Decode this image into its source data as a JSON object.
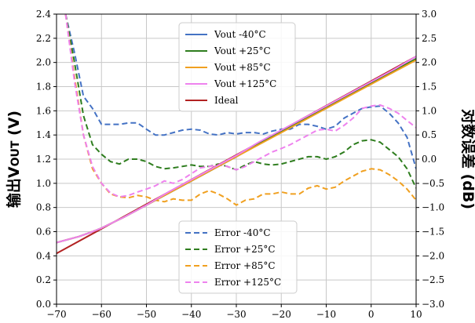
{
  "chart_data": {
    "type": "line",
    "title": "",
    "xlabel": "",
    "ylabel": "输出VOUT (V)",
    "ylabel_parts": {
      "prefix": "输出V",
      "subscript": "OUT",
      "suffix": " (V)"
    },
    "y2label": "对数误差 (dB)",
    "xlim": [
      -70,
      10
    ],
    "ylim": [
      0,
      2.4
    ],
    "y2lim": [
      -3.0,
      3.0
    ],
    "xticks": [
      -70,
      -60,
      -50,
      -40,
      -30,
      -20,
      -10,
      0,
      10
    ],
    "xtick_labels": [
      "−70",
      "−60",
      "−50",
      "−40",
      "−30",
      "−20",
      "−10",
      "0",
      "10"
    ],
    "yticks": [
      0.0,
      0.2,
      0.4,
      0.6,
      0.8,
      1.0,
      1.2,
      1.4,
      1.6,
      1.8,
      2.0,
      2.2,
      2.4
    ],
    "ytick_labels": [
      "0.0",
      "0.2",
      "0.4",
      "0.6",
      "0.8",
      "1.0",
      "1.2",
      "1.4",
      "1.6",
      "1.8",
      "2.0",
      "2.2",
      "2.4"
    ],
    "y2ticks": [
      -3.0,
      -2.5,
      -2.0,
      -1.5,
      -1.0,
      -0.5,
      0.0,
      0.5,
      1.0,
      1.5,
      2.0,
      2.5,
      3.0
    ],
    "y2tick_labels": [
      "−3.0",
      "−2.5",
      "−2.0",
      "−1.5",
      "−1.0",
      "−0.5",
      "0.0",
      "0.5",
      "1.0",
      "1.5",
      "2.0",
      "2.5",
      "3.0"
    ],
    "grid": true,
    "legends": [
      {
        "placement": "upper-center",
        "entries": [
          "Vout  -40°C",
          "Vout +25°C",
          "Vout +85°C",
          "Vout +125°C",
          "Ideal"
        ]
      },
      {
        "placement": "lower-center",
        "entries": [
          "Error  -40°C",
          "Error +25°C",
          "Error +85°C",
          "Error +125°C"
        ]
      }
    ],
    "series": [
      {
        "name": "Vout  -40°C",
        "axis": "left",
        "style": "solid",
        "color": "#4472C4",
        "x": [
          -70,
          -65,
          -62,
          -60,
          -55,
          -50,
          -45,
          -40,
          -35,
          -30,
          -25,
          -20,
          -15,
          -10,
          -5,
          0,
          5,
          10
        ],
        "y": [
          0.51,
          0.56,
          0.6,
          0.63,
          0.72,
          0.82,
          0.92,
          1.02,
          1.12,
          1.22,
          1.33,
          1.43,
          1.53,
          1.63,
          1.73,
          1.83,
          1.93,
          2.03
        ]
      },
      {
        "name": "Vout +25°C",
        "axis": "left",
        "style": "solid",
        "color": "#2E7D1E",
        "x": [
          -70,
          -65,
          -62,
          -60,
          -55,
          -50,
          -45,
          -40,
          -35,
          -30,
          -25,
          -20,
          -15,
          -10,
          -5,
          0,
          5,
          10
        ],
        "y": [
          0.51,
          0.56,
          0.6,
          0.63,
          0.72,
          0.82,
          0.92,
          1.02,
          1.12,
          1.22,
          1.33,
          1.43,
          1.53,
          1.63,
          1.73,
          1.83,
          1.93,
          2.03
        ]
      },
      {
        "name": "Vout +85°C",
        "axis": "left",
        "style": "solid",
        "color": "#F0A020",
        "x": [
          -70,
          -65,
          -62,
          -60,
          -55,
          -50,
          -45,
          -40,
          -35,
          -30,
          -25,
          -20,
          -15,
          -10,
          -5,
          0,
          5,
          10
        ],
        "y": [
          0.51,
          0.56,
          0.6,
          0.63,
          0.72,
          0.82,
          0.92,
          1.02,
          1.12,
          1.22,
          1.32,
          1.42,
          1.52,
          1.62,
          1.72,
          1.82,
          1.92,
          2.02
        ]
      },
      {
        "name": "Vout +125°C",
        "axis": "left",
        "style": "solid",
        "color": "#EE82EE",
        "x": [
          -70,
          -65,
          -62,
          -60,
          -55,
          -50,
          -45,
          -40,
          -35,
          -30,
          -25,
          -20,
          -15,
          -10,
          -5,
          0,
          5,
          10
        ],
        "y": [
          0.51,
          0.56,
          0.6,
          0.63,
          0.72,
          0.82,
          0.93,
          1.03,
          1.13,
          1.23,
          1.34,
          1.44,
          1.54,
          1.64,
          1.74,
          1.84,
          1.94,
          2.05
        ]
      },
      {
        "name": "Ideal",
        "axis": "left",
        "style": "solid",
        "color": "#B22222",
        "x": [
          -70,
          10
        ],
        "y": [
          0.42,
          2.05
        ]
      },
      {
        "name": "Error  -40°C",
        "axis": "right",
        "style": "dashed",
        "color": "#4472C4",
        "x": [
          -68,
          -66,
          -64,
          -62,
          -60,
          -58,
          -56,
          -54,
          -52,
          -50,
          -48,
          -46,
          -44,
          -42,
          -40,
          -38,
          -36,
          -34,
          -32,
          -30,
          -28,
          -26,
          -24,
          -22,
          -20,
          -18,
          -16,
          -14,
          -12,
          -10,
          -8,
          -6,
          -4,
          -2,
          0,
          2,
          4,
          6,
          8,
          10
        ],
        "y": [
          3.0,
          2.2,
          1.3,
          1.05,
          0.72,
          0.72,
          0.72,
          0.75,
          0.75,
          0.62,
          0.5,
          0.5,
          0.55,
          0.6,
          0.62,
          0.6,
          0.52,
          0.5,
          0.55,
          0.52,
          0.55,
          0.55,
          0.52,
          0.58,
          0.62,
          0.62,
          0.72,
          0.72,
          0.68,
          0.62,
          0.68,
          0.85,
          0.95,
          1.05,
          1.08,
          1.1,
          0.95,
          0.75,
          0.45,
          -0.2
        ]
      },
      {
        "name": "Error +25°C",
        "axis": "right",
        "style": "dashed",
        "color": "#2E7D1E",
        "x": [
          -68,
          -66,
          -64,
          -62,
          -60,
          -58,
          -56,
          -54,
          -52,
          -50,
          -48,
          -46,
          -44,
          -42,
          -40,
          -38,
          -36,
          -34,
          -32,
          -30,
          -28,
          -26,
          -24,
          -22,
          -20,
          -18,
          -16,
          -14,
          -12,
          -10,
          -8,
          -6,
          -4,
          -2,
          0,
          2,
          4,
          6,
          8,
          10
        ],
        "y": [
          3.0,
          2.0,
          0.9,
          0.3,
          0.1,
          -0.05,
          -0.1,
          0.0,
          0.0,
          -0.05,
          -0.15,
          -0.2,
          -0.18,
          -0.15,
          -0.12,
          -0.15,
          -0.15,
          -0.1,
          -0.15,
          -0.22,
          -0.12,
          -0.05,
          -0.1,
          -0.12,
          -0.1,
          -0.05,
          0.0,
          0.05,
          0.05,
          0.0,
          0.05,
          0.15,
          0.3,
          0.38,
          0.4,
          0.35,
          0.2,
          0.05,
          -0.2,
          -0.6
        ]
      },
      {
        "name": "Error +85°C",
        "axis": "right",
        "style": "dashed",
        "color": "#F0A020",
        "x": [
          -68,
          -66,
          -64,
          -62,
          -60,
          -58,
          -56,
          -54,
          -52,
          -50,
          -48,
          -46,
          -44,
          -42,
          -40,
          -38,
          -36,
          -34,
          -32,
          -30,
          -28,
          -26,
          -24,
          -22,
          -20,
          -18,
          -16,
          -14,
          -12,
          -10,
          -8,
          -6,
          -4,
          -2,
          0,
          2,
          4,
          6,
          8,
          10
        ],
        "y": [
          3.0,
          1.7,
          0.5,
          -0.2,
          -0.5,
          -0.72,
          -0.78,
          -0.8,
          -0.75,
          -0.78,
          -0.85,
          -0.88,
          -0.82,
          -0.85,
          -0.85,
          -0.72,
          -0.65,
          -0.72,
          -0.82,
          -0.95,
          -0.85,
          -0.82,
          -0.72,
          -0.72,
          -0.68,
          -0.72,
          -0.72,
          -0.6,
          -0.55,
          -0.62,
          -0.58,
          -0.45,
          -0.35,
          -0.25,
          -0.2,
          -0.22,
          -0.32,
          -0.45,
          -0.62,
          -0.85
        ]
      },
      {
        "name": "Error +125°C",
        "axis": "right",
        "style": "dashed",
        "color": "#EE82EE",
        "x": [
          -68,
          -66,
          -64,
          -62,
          -60,
          -58,
          -56,
          -54,
          -52,
          -50,
          -48,
          -46,
          -44,
          -42,
          -40,
          -38,
          -36,
          -34,
          -32,
          -30,
          -28,
          -26,
          -24,
          -22,
          -20,
          -18,
          -16,
          -14,
          -12,
          -10,
          -8,
          -6,
          -4,
          -2,
          0,
          2,
          4,
          6,
          8,
          10
        ],
        "y": [
          3.0,
          1.6,
          0.5,
          -0.15,
          -0.5,
          -0.7,
          -0.78,
          -0.75,
          -0.68,
          -0.62,
          -0.55,
          -0.45,
          -0.5,
          -0.42,
          -0.3,
          -0.18,
          -0.15,
          -0.12,
          -0.15,
          -0.22,
          -0.15,
          -0.05,
          0.05,
          0.15,
          0.22,
          0.3,
          0.4,
          0.5,
          0.6,
          0.62,
          0.58,
          0.7,
          0.85,
          1.05,
          1.1,
          1.12,
          1.05,
          0.95,
          0.8,
          0.65
        ]
      }
    ]
  }
}
